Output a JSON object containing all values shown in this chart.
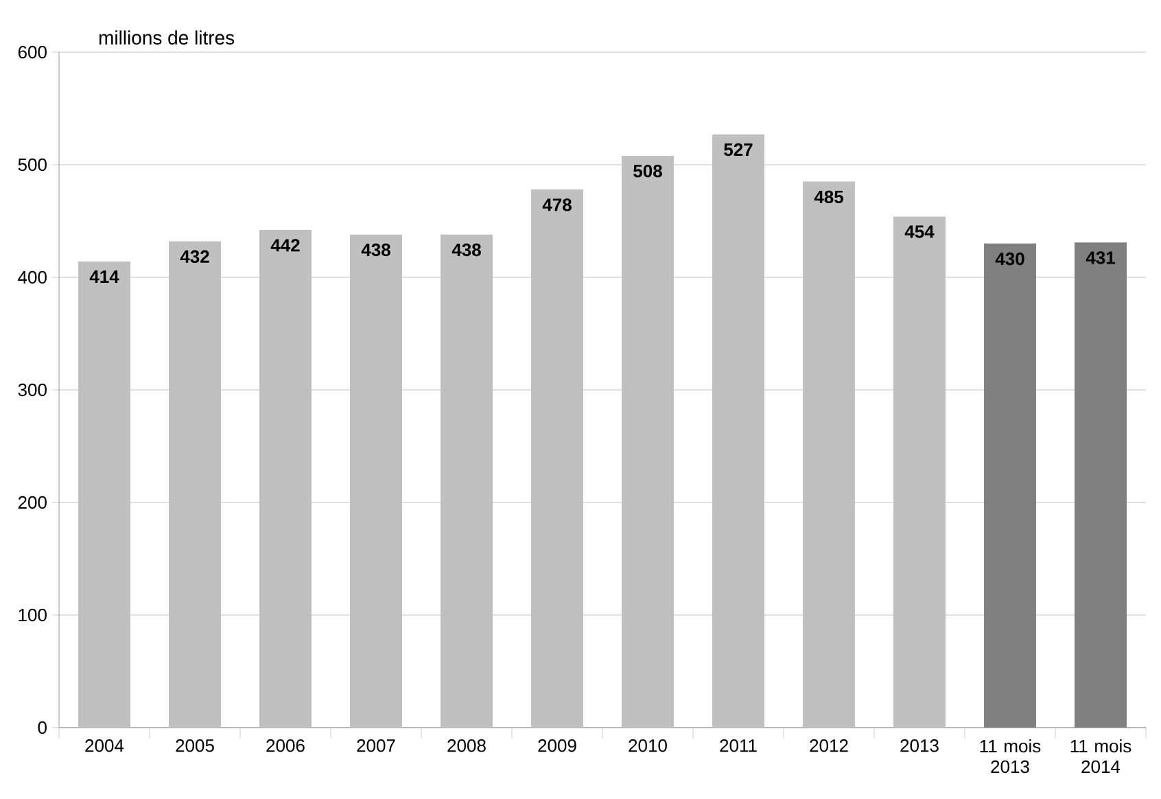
{
  "chart_data": {
    "type": "bar",
    "ylabel": "millions de litres",
    "categories": [
      "2004",
      "2005",
      "2006",
      "2007",
      "2008",
      "2009",
      "2010",
      "2011",
      "2012",
      "2013",
      "11 mois 2013",
      "11 mois 2014"
    ],
    "values": [
      414,
      432,
      442,
      438,
      438,
      478,
      508,
      527,
      485,
      454,
      430,
      431
    ],
    "colors": [
      "#c0c0c0",
      "#c0c0c0",
      "#c0c0c0",
      "#c0c0c0",
      "#c0c0c0",
      "#c0c0c0",
      "#c0c0c0",
      "#c0c0c0",
      "#c0c0c0",
      "#c0c0c0",
      "#808080",
      "#808080"
    ],
    "ylim": [
      0,
      600
    ],
    "yticks": [
      0,
      100,
      200,
      300,
      400,
      500,
      600
    ],
    "grid": "y",
    "data_labels": true
  }
}
